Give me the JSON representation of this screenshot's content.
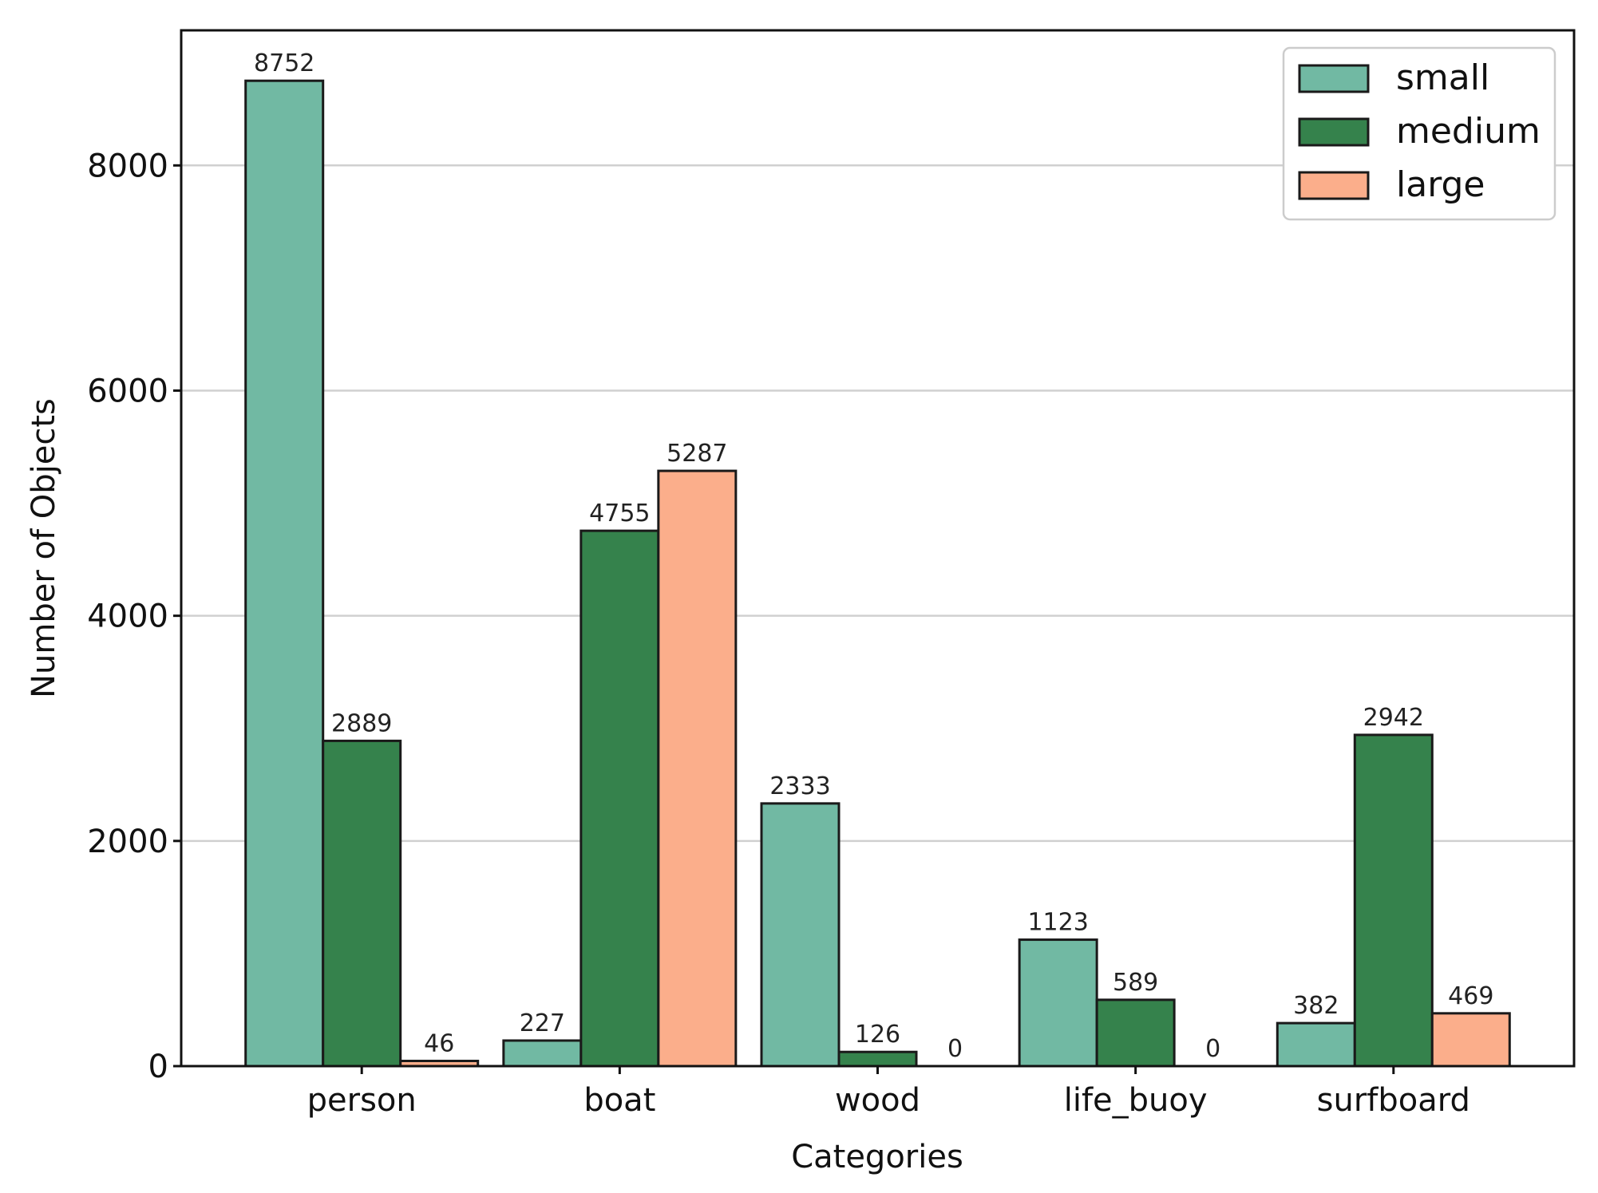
{
  "chart_data": {
    "type": "bar",
    "title": "",
    "xlabel": "Categories",
    "ylabel": "Number of Objects",
    "categories": [
      "person",
      "boat",
      "wood",
      "life_buoy",
      "surfboard"
    ],
    "series": [
      {
        "name": "small",
        "color": "#71b9a3",
        "values": [
          8752,
          227,
          2333,
          1123,
          382
        ]
      },
      {
        "name": "medium",
        "color": "#35824c",
        "values": [
          2889,
          4755,
          126,
          589,
          2942
        ]
      },
      {
        "name": "large",
        "color": "#fbae8b",
        "values": [
          46,
          5287,
          0,
          0,
          469
        ]
      }
    ],
    "ylim": [
      0,
      9200
    ],
    "yticks": [
      0,
      2000,
      4000,
      6000,
      8000
    ],
    "grid": "horizontal",
    "legend_position": "top-right",
    "edge_color": "#1a1a1a"
  }
}
